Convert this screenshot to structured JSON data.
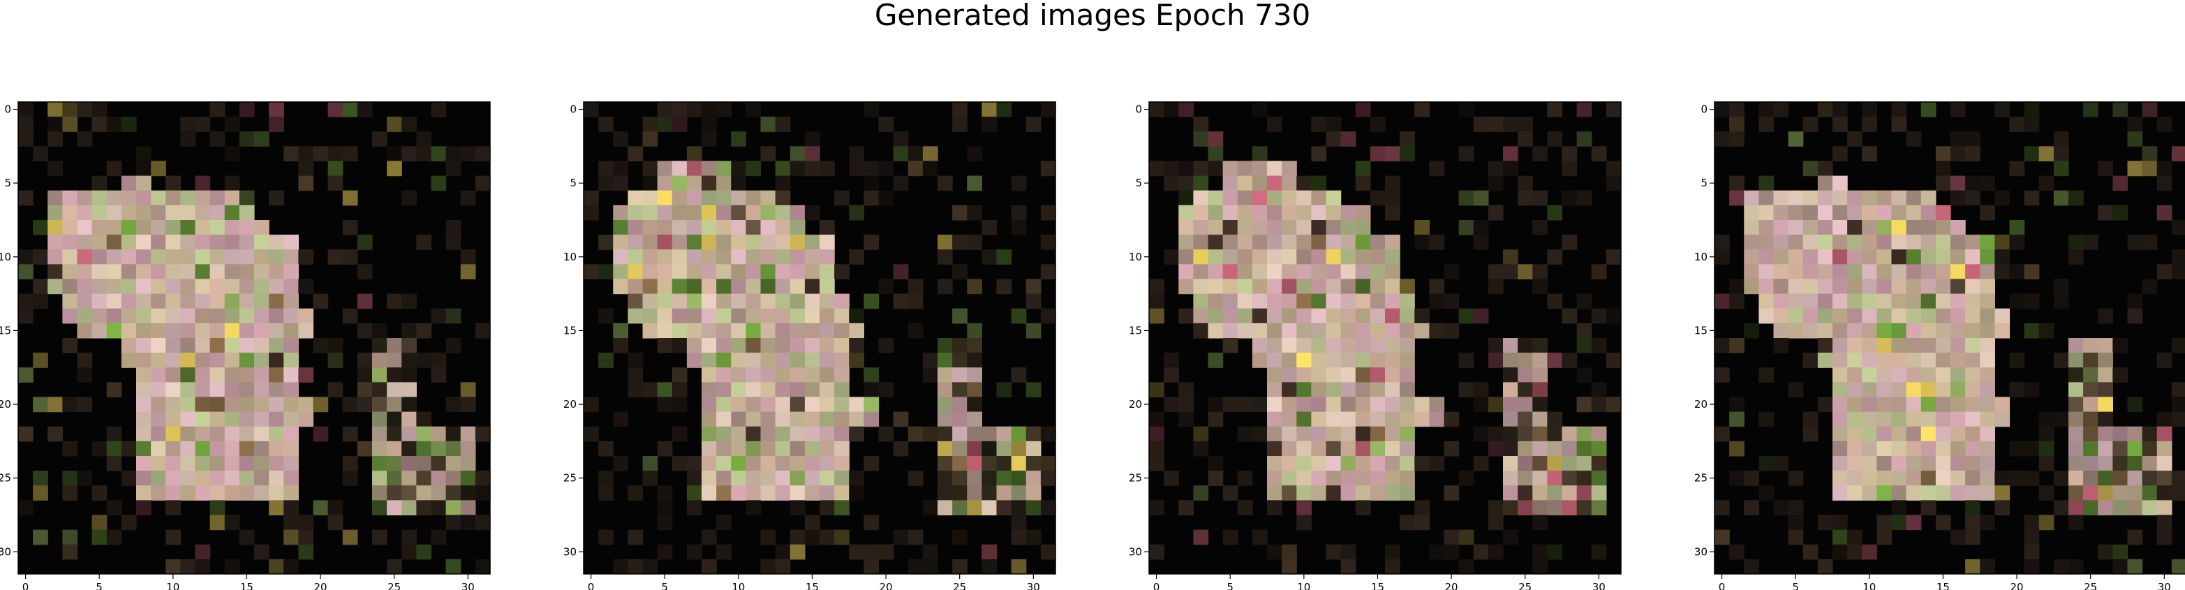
{
  "figure": {
    "title": "Generated images Epoch 730"
  },
  "chart_data": [
    {
      "type": "heatmap",
      "title": "",
      "xlabel": "",
      "ylabel": "",
      "xlim": [
        -0.5,
        31.5
      ],
      "ylim": [
        31.5,
        -0.5
      ],
      "xticks": [
        0,
        5,
        10,
        15,
        20,
        25,
        30
      ],
      "yticks": [
        0,
        5,
        10,
        15,
        20,
        25,
        30
      ],
      "grid": false,
      "seed": 11,
      "content": "32x32 RGB generated image; light pinkish silhouette on black background",
      "palette": {
        "background": "#050404",
        "body": [
          "#d8c0b0",
          "#c9aa96",
          "#b5bf8c",
          "#d4b2b7",
          "#c3b08f",
          "#b79a8f",
          "#d0bfa0",
          "#c79ca4"
        ],
        "accent": [
          "#8ba75a",
          "#6c9b3b",
          "#b35a6b",
          "#7a6040",
          "#4e6e2c",
          "#e3c85a",
          "#3a2a22",
          "#5a4a3a"
        ]
      },
      "body_rows": [
        [
          5,
          5,
          7,
          8
        ],
        [
          6,
          6,
          2,
          14
        ],
        [
          7,
          7,
          2,
          15
        ],
        [
          8,
          8,
          2,
          16
        ],
        [
          9,
          12,
          2,
          18
        ],
        [
          13,
          13,
          3,
          18
        ],
        [
          14,
          14,
          3,
          19
        ],
        [
          15,
          15,
          4,
          19
        ],
        [
          16,
          17,
          7,
          18
        ],
        [
          18,
          19,
          8,
          18
        ],
        [
          20,
          21,
          8,
          19
        ],
        [
          22,
          26,
          8,
          18
        ]
      ],
      "side_rows": [
        [
          16,
          21,
          24,
          26
        ],
        [
          22,
          27,
          24,
          30
        ]
      ]
    },
    {
      "type": "heatmap",
      "title": "",
      "xlabel": "",
      "ylabel": "",
      "xlim": [
        -0.5,
        31.5
      ],
      "ylim": [
        31.5,
        -0.5
      ],
      "xticks": [
        0,
        5,
        10,
        15,
        20,
        25,
        30
      ],
      "yticks": [
        0,
        5,
        10,
        15,
        20,
        25,
        30
      ],
      "grid": false,
      "seed": 23,
      "content": "32x32 RGB generated image; light pinkish silhouette on black background",
      "palette": {
        "background": "#050404",
        "body": [
          "#d8c0b0",
          "#c9aa96",
          "#b5bf8c",
          "#d4b2b7",
          "#c3b08f",
          "#b79a8f",
          "#d0bfa0",
          "#c79ca4"
        ],
        "accent": [
          "#8ba75a",
          "#6c9b3b",
          "#b35a6b",
          "#7a6040",
          "#4e6e2c",
          "#e3c85a",
          "#3a2a22",
          "#5a4a3a"
        ]
      },
      "body_rows": [
        [
          4,
          5,
          5,
          9
        ],
        [
          6,
          6,
          3,
          12
        ],
        [
          7,
          8,
          2,
          14
        ],
        [
          9,
          12,
          2,
          16
        ],
        [
          13,
          14,
          3,
          17
        ],
        [
          15,
          15,
          4,
          18
        ],
        [
          16,
          17,
          7,
          17
        ],
        [
          18,
          19,
          8,
          17
        ],
        [
          20,
          21,
          8,
          19
        ],
        [
          22,
          26,
          8,
          17
        ]
      ],
      "side_rows": [
        [
          16,
          21,
          24,
          26
        ],
        [
          22,
          27,
          24,
          30
        ]
      ]
    },
    {
      "type": "heatmap",
      "title": "",
      "xlabel": "",
      "ylabel": "",
      "xlim": [
        -0.5,
        31.5
      ],
      "ylim": [
        31.5,
        -0.5
      ],
      "xticks": [
        0,
        5,
        10,
        15,
        20,
        25,
        30
      ],
      "yticks": [
        0,
        5,
        10,
        15,
        20,
        25,
        30
      ],
      "grid": false,
      "seed": 37,
      "content": "32x32 RGB generated image; light pinkish silhouette on black background",
      "palette": {
        "background": "#050404",
        "body": [
          "#d8c0b0",
          "#c9aa96",
          "#b5bf8c",
          "#d4b2b7",
          "#c3b08f",
          "#b79a8f",
          "#d0bfa0",
          "#c79ca4"
        ],
        "accent": [
          "#8ba75a",
          "#6c9b3b",
          "#b35a6b",
          "#7a6040",
          "#4e6e2c",
          "#e3c85a",
          "#3a2a22",
          "#5a4a3a"
        ]
      },
      "body_rows": [
        [
          4,
          5,
          5,
          9
        ],
        [
          6,
          6,
          3,
          12
        ],
        [
          7,
          8,
          2,
          14
        ],
        [
          9,
          12,
          2,
          16
        ],
        [
          13,
          14,
          3,
          17
        ],
        [
          15,
          15,
          4,
          18
        ],
        [
          16,
          17,
          7,
          17
        ],
        [
          18,
          19,
          8,
          17
        ],
        [
          20,
          21,
          8,
          19
        ],
        [
          22,
          26,
          8,
          17
        ]
      ],
      "side_rows": [
        [
          16,
          21,
          24,
          26
        ],
        [
          22,
          27,
          24,
          30
        ]
      ]
    },
    {
      "type": "heatmap",
      "title": "",
      "xlabel": "",
      "ylabel": "",
      "xlim": [
        -0.5,
        31.5
      ],
      "ylim": [
        31.5,
        -0.5
      ],
      "xticks": [
        0,
        5,
        10,
        15,
        20,
        25,
        30
      ],
      "yticks": [
        0,
        5,
        10,
        15,
        20,
        25,
        30
      ],
      "grid": false,
      "seed": 53,
      "content": "32x32 RGB generated image; light pinkish silhouette on black background",
      "palette": {
        "background": "#050404",
        "body": [
          "#d8c0b0",
          "#c9aa96",
          "#b5bf8c",
          "#d4b2b7",
          "#c3b08f",
          "#b79a8f",
          "#d0bfa0",
          "#c79ca4"
        ],
        "accent": [
          "#8ba75a",
          "#6c9b3b",
          "#b35a6b",
          "#7a6040",
          "#4e6e2c",
          "#e3c85a",
          "#3a2a22",
          "#5a4a3a"
        ]
      },
      "body_rows": [
        [
          5,
          5,
          7,
          8
        ],
        [
          6,
          6,
          2,
          14
        ],
        [
          7,
          7,
          2,
          15
        ],
        [
          8,
          8,
          2,
          16
        ],
        [
          9,
          12,
          2,
          18
        ],
        [
          13,
          13,
          3,
          18
        ],
        [
          14,
          14,
          3,
          19
        ],
        [
          15,
          15,
          4,
          19
        ],
        [
          16,
          17,
          7,
          18
        ],
        [
          18,
          19,
          8,
          18
        ],
        [
          20,
          21,
          8,
          19
        ],
        [
          22,
          26,
          8,
          18
        ]
      ],
      "side_rows": [
        [
          16,
          21,
          24,
          26
        ],
        [
          22,
          27,
          24,
          30
        ]
      ]
    }
  ]
}
